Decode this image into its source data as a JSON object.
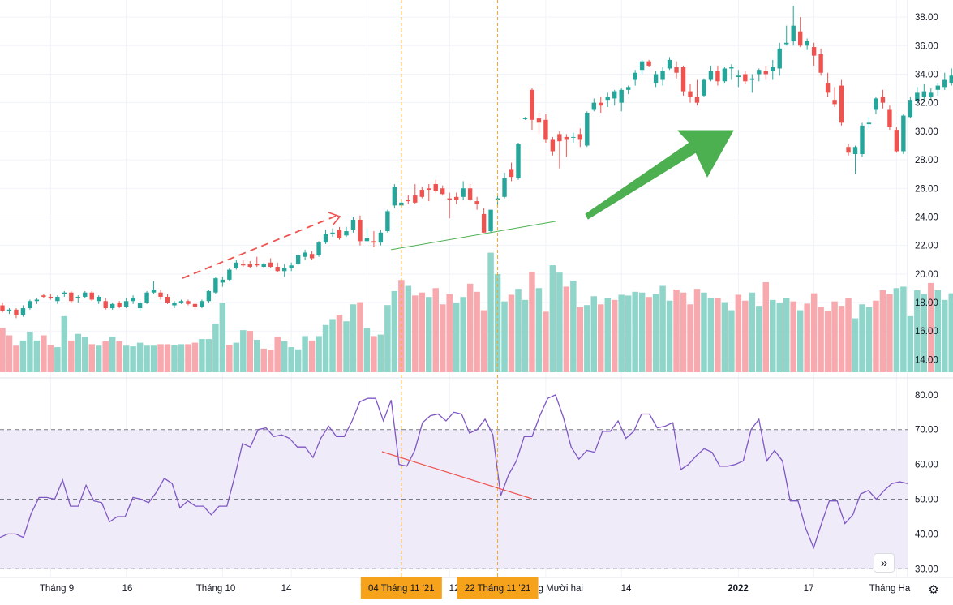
{
  "colors": {
    "up": "#26a69a",
    "down": "#ef5350",
    "vol_up": "#8fd5c9",
    "vol_down": "#f7a9ae",
    "rsi_line": "#7e57c2",
    "rsi_band": "#efebf9",
    "crosshair": "#f5a623",
    "label_bg": "#f7a21b",
    "trend_arrow": "#4caf50"
  },
  "scroll_icon": "double-chevron-right-icon",
  "settings_icon": "gear-icon",
  "scroll_glyph": "»",
  "settings_glyph": "⚙",
  "chart_data": [
    {
      "type": "candlestick",
      "title": "",
      "ylim": [
        13.0,
        39.2
      ],
      "y_ticks": [
        "38.00",
        "36.00",
        "34.00",
        "32.00",
        "30.00",
        "28.00",
        "26.00",
        "24.00",
        "22.00",
        "20.00",
        "18.00",
        "16.00",
        "14.00"
      ],
      "x_ticks": [
        "Tháng 9",
        "16",
        "Tháng 10",
        "14",
        "T",
        "12",
        "ng Mười hai",
        "14",
        "2022",
        "17",
        "Tháng Ha"
      ],
      "crosshair_labels": [
        "04 Tháng 11 '21",
        "22 Tháng 11 '21"
      ],
      "candles": [
        [
          17.8,
          18.0,
          17.3,
          17.4
        ],
        [
          17.4,
          17.6,
          17.2,
          17.5
        ],
        [
          17.5,
          17.6,
          16.9,
          17.1
        ],
        [
          17.1,
          17.8,
          17.0,
          17.6
        ],
        [
          17.6,
          18.2,
          17.5,
          18.1
        ],
        [
          18.1,
          18.3,
          17.9,
          18.2
        ],
        [
          18.5,
          18.6,
          18.3,
          18.4
        ],
        [
          18.4,
          18.6,
          18.2,
          18.3
        ],
        [
          18.1,
          18.5,
          17.9,
          18.4
        ],
        [
          18.6,
          18.8,
          18.4,
          18.7
        ],
        [
          18.7,
          18.8,
          18.0,
          18.1
        ],
        [
          18.3,
          18.5,
          18.0,
          18.4
        ],
        [
          18.4,
          18.8,
          18.3,
          18.7
        ],
        [
          18.7,
          18.8,
          18.1,
          18.2
        ],
        [
          18.1,
          18.5,
          17.9,
          18.4
        ],
        [
          18.1,
          18.3,
          17.5,
          17.6
        ],
        [
          17.6,
          18.0,
          17.5,
          17.9
        ],
        [
          18.0,
          18.1,
          17.6,
          17.7
        ],
        [
          17.7,
          18.3,
          17.6,
          18.1
        ],
        [
          18.1,
          18.5,
          17.9,
          18.3
        ],
        [
          17.6,
          18.1,
          17.4,
          18.0
        ],
        [
          18.0,
          18.8,
          17.9,
          18.7
        ],
        [
          18.7,
          19.5,
          18.6,
          18.9
        ],
        [
          18.7,
          18.9,
          18.2,
          18.4
        ],
        [
          18.4,
          18.6,
          17.9,
          18.0
        ],
        [
          17.8,
          18.1,
          17.6,
          18.0
        ],
        [
          18.0,
          18.2,
          17.9,
          18.1
        ],
        [
          18.1,
          18.2,
          17.8,
          17.9
        ],
        [
          17.9,
          18.0,
          17.5,
          17.7
        ],
        [
          17.7,
          18.2,
          17.6,
          18.1
        ],
        [
          18.1,
          18.9,
          18.0,
          18.8
        ],
        [
          18.7,
          19.8,
          18.6,
          19.7
        ],
        [
          19.4,
          19.8,
          19.1,
          19.6
        ],
        [
          19.6,
          20.4,
          19.5,
          20.3
        ],
        [
          20.4,
          21.0,
          20.3,
          20.8
        ],
        [
          20.7,
          21.0,
          20.5,
          20.6
        ],
        [
          20.7,
          20.9,
          20.4,
          20.5
        ],
        [
          20.7,
          21.2,
          20.5,
          20.6
        ],
        [
          20.5,
          20.8,
          20.4,
          20.7
        ],
        [
          20.8,
          21.1,
          20.4,
          20.5
        ],
        [
          20.5,
          20.8,
          20.1,
          20.2
        ],
        [
          20.2,
          20.7,
          19.8,
          20.4
        ],
        [
          20.4,
          20.8,
          20.2,
          20.6
        ],
        [
          20.7,
          21.4,
          20.6,
          21.3
        ],
        [
          21.2,
          21.7,
          21.0,
          21.5
        ],
        [
          21.4,
          21.6,
          21.0,
          21.1
        ],
        [
          21.3,
          22.3,
          21.2,
          22.2
        ],
        [
          22.2,
          23.1,
          22.1,
          22.8
        ],
        [
          22.8,
          23.2,
          22.6,
          22.9
        ],
        [
          23.1,
          23.3,
          22.4,
          22.5
        ],
        [
          22.7,
          23.3,
          22.6,
          23.0
        ],
        [
          23.1,
          24.0,
          22.9,
          23.8
        ],
        [
          23.8,
          24.1,
          22.0,
          22.3
        ],
        [
          22.3,
          23.2,
          22.2,
          22.5
        ],
        [
          22.3,
          23.0,
          21.9,
          22.2
        ],
        [
          22.2,
          23.1,
          22.0,
          22.9
        ],
        [
          23.0,
          24.5,
          22.9,
          24.4
        ],
        [
          24.8,
          26.3,
          24.6,
          26.1
        ],
        [
          24.8,
          25.2,
          24.6,
          25.0
        ],
        [
          25.2,
          25.5,
          24.9,
          25.1
        ],
        [
          25.5,
          26.3,
          24.9,
          25.0
        ],
        [
          25.9,
          26.1,
          25.3,
          25.4
        ],
        [
          26.0,
          26.3,
          25.1,
          25.9
        ],
        [
          26.3,
          26.6,
          25.7,
          25.8
        ],
        [
          26.0,
          26.2,
          25.5,
          25.6
        ],
        [
          25.3,
          25.7,
          23.9,
          25.2
        ],
        [
          25.4,
          25.7,
          24.9,
          25.2
        ],
        [
          25.4,
          26.5,
          25.2,
          26.0
        ],
        [
          26.0,
          26.3,
          25.1,
          25.2
        ],
        [
          25.1,
          25.4,
          24.5,
          24.9
        ],
        [
          24.2,
          24.6,
          22.9,
          22.9
        ],
        [
          23.0,
          24.5,
          22.9,
          24.5
        ],
        [
          25.2,
          25.5,
          24.8,
          25.3
        ],
        [
          25.4,
          27.1,
          25.3,
          26.7
        ],
        [
          27.3,
          27.8,
          26.5,
          26.8
        ],
        [
          26.7,
          29.2,
          26.6,
          29.1
        ],
        [
          30.9,
          31.0,
          30.8,
          30.9
        ],
        [
          32.9,
          33.0,
          30.1,
          30.8
        ],
        [
          30.9,
          31.3,
          29.8,
          30.6
        ],
        [
          30.8,
          31.2,
          29.2,
          29.4
        ],
        [
          29.4,
          29.6,
          28.3,
          28.6
        ],
        [
          29.8,
          30.0,
          27.4,
          29.3
        ],
        [
          29.6,
          29.8,
          28.2,
          29.4
        ],
        [
          29.6,
          29.9,
          29.2,
          29.6
        ],
        [
          29.8,
          30.2,
          28.9,
          29.4
        ],
        [
          29.0,
          31.4,
          28.9,
          31.3
        ],
        [
          31.5,
          32.3,
          31.4,
          32.0
        ],
        [
          32.0,
          32.4,
          31.3,
          31.8
        ],
        [
          32.2,
          32.7,
          31.7,
          32.4
        ],
        [
          32.3,
          32.9,
          31.8,
          32.8
        ],
        [
          32.0,
          33.0,
          31.4,
          32.9
        ],
        [
          32.9,
          33.2,
          32.6,
          33.1
        ],
        [
          33.6,
          34.3,
          33.2,
          34.1
        ],
        [
          34.3,
          35.0,
          34.0,
          34.9
        ],
        [
          34.9,
          35.0,
          34.5,
          34.6
        ],
        [
          33.4,
          34.2,
          33.1,
          34.0
        ],
        [
          33.6,
          34.5,
          33.2,
          34.2
        ],
        [
          34.4,
          35.2,
          34.3,
          35.0
        ],
        [
          34.5,
          34.9,
          33.7,
          34.1
        ],
        [
          34.5,
          34.6,
          32.5,
          32.8
        ],
        [
          32.8,
          33.3,
          32.0,
          32.4
        ],
        [
          32.4,
          33.6,
          31.8,
          32.0
        ],
        [
          32.5,
          33.7,
          32.4,
          33.6
        ],
        [
          33.6,
          34.6,
          33.5,
          34.2
        ],
        [
          34.2,
          34.6,
          33.2,
          33.5
        ],
        [
          33.5,
          34.5,
          33.4,
          34.4
        ],
        [
          34.4,
          34.7,
          33.6,
          34.5
        ],
        [
          33.8,
          34.3,
          33.1,
          33.9
        ],
        [
          34.0,
          34.2,
          33.3,
          33.5
        ],
        [
          33.6,
          34.0,
          32.7,
          33.7
        ],
        [
          34.0,
          34.4,
          33.5,
          34.3
        ],
        [
          34.2,
          34.6,
          33.6,
          34.0
        ],
        [
          34.2,
          35.0,
          33.6,
          34.5
        ],
        [
          34.4,
          36.2,
          33.9,
          35.8
        ],
        [
          36.1,
          37.4,
          36.0,
          36.2
        ],
        [
          36.3,
          38.8,
          36.0,
          37.4
        ],
        [
          37.0,
          38.0,
          35.9,
          36.0
        ],
        [
          36.0,
          36.5,
          35.7,
          36.3
        ],
        [
          35.9,
          36.2,
          34.6,
          35.3
        ],
        [
          35.4,
          35.8,
          33.9,
          34.1
        ],
        [
          33.4,
          34.1,
          32.4,
          32.7
        ],
        [
          32.2,
          33.1,
          31.7,
          31.9
        ],
        [
          33.2,
          33.6,
          30.4,
          30.6
        ],
        [
          28.9,
          29.1,
          28.3,
          28.5
        ],
        [
          28.4,
          29.0,
          27.0,
          28.9
        ],
        [
          28.4,
          30.6,
          28.2,
          30.4
        ],
        [
          30.5,
          31.0,
          30.2,
          30.6
        ],
        [
          31.5,
          32.4,
          31.2,
          32.3
        ],
        [
          32.4,
          32.9,
          31.6,
          32.0
        ],
        [
          31.5,
          31.8,
          30.1,
          30.3
        ],
        [
          30.1,
          30.3,
          28.5,
          28.6
        ],
        [
          28.6,
          31.2,
          28.4,
          31.1
        ],
        [
          31.0,
          32.4,
          30.9,
          32.2
        ],
        [
          32.1,
          33.1,
          31.9,
          32.7
        ],
        [
          32.4,
          33.3,
          32.1,
          32.8
        ],
        [
          32.4,
          33.0,
          32.2,
          32.7
        ],
        [
          32.9,
          33.4,
          32.5,
          33.2
        ],
        [
          33.1,
          34.1,
          32.9,
          33.6
        ],
        [
          33.4,
          34.4,
          33.2,
          33.9
        ]
      ]
    },
    {
      "type": "bar",
      "title": "Volume",
      "values": [
        0.6,
        0.5,
        0.36,
        0.43,
        0.55,
        0.43,
        0.5,
        0.37,
        0.34,
        0.76,
        0.43,
        0.52,
        0.48,
        0.38,
        0.36,
        0.42,
        0.48,
        0.42,
        0.36,
        0.35,
        0.4,
        0.36,
        0.36,
        0.38,
        0.38,
        0.37,
        0.38,
        0.38,
        0.4,
        0.45,
        0.45,
        0.66,
        0.94,
        0.37,
        0.4,
        0.57,
        0.56,
        0.44,
        0.32,
        0.3,
        0.48,
        0.42,
        0.34,
        0.31,
        0.49,
        0.43,
        0.49,
        0.64,
        0.72,
        0.78,
        0.69,
        0.92,
        0.95,
        0.6,
        0.49,
        0.51,
        0.91,
        1.1,
        1.25,
        1.17,
        1.04,
        1.08,
        1.02,
        1.14,
        0.92,
        1.06,
        0.94,
        1.02,
        1.2,
        1.09,
        0.84,
        1.62,
        1.33,
        0.96,
        1.05,
        1.13,
        0.98,
        1.36,
        1.14,
        0.82,
        1.45,
        1.35,
        1.16,
        1.24,
        0.88,
        0.91,
        1.03,
        0.92,
        1.0,
        0.98,
        1.05,
        1.04,
        1.09,
        1.08,
        1.02,
        1.06,
        1.17,
        0.97,
        1.12,
        1.08,
        0.92,
        1.13,
        1.08,
        1.01,
        1.0,
        0.95,
        0.84,
        1.05,
        0.97,
        1.08,
        0.9,
        1.22,
        0.98,
        0.94,
        1.0,
        0.96,
        0.84,
        0.93,
        1.07,
        0.88,
        0.83,
        0.96,
        0.9,
        1.0,
        0.73,
        0.92,
        0.88,
        0.97,
        1.11,
        1.06,
        1.14,
        1.16,
        0.76,
        1.11,
        1.06,
        1.21,
        1.11,
        0.98,
        1.07,
        0.84
      ],
      "up": [
        false,
        false,
        false,
        true,
        true,
        true,
        false,
        false,
        true,
        true,
        false,
        true,
        true,
        false,
        true,
        false,
        true,
        false,
        true,
        true,
        true,
        true,
        true,
        false,
        false,
        true,
        true,
        false,
        false,
        true,
        true,
        true,
        true,
        false,
        true,
        true,
        false,
        true,
        false,
        false,
        false,
        true,
        true,
        true,
        true,
        false,
        true,
        true,
        true,
        false,
        true,
        true,
        false,
        true,
        false,
        true,
        true,
        true,
        false,
        true,
        false,
        false,
        true,
        false,
        false,
        false,
        true,
        true,
        false,
        false,
        false,
        true,
        true,
        true,
        false,
        true,
        true,
        false,
        true,
        false,
        true,
        true,
        false,
        true,
        false,
        true,
        true,
        false,
        true,
        false,
        true,
        true,
        true,
        true,
        false,
        true,
        true,
        true,
        false,
        false,
        false,
        false,
        true,
        true,
        false,
        true,
        true,
        false,
        false,
        true,
        true,
        false,
        true,
        true,
        true,
        false,
        true,
        false,
        false,
        false,
        false,
        false,
        false,
        false,
        true,
        true,
        true,
        false,
        false,
        false,
        true,
        true,
        true,
        true,
        true,
        false,
        true,
        true,
        true,
        true
      ]
    },
    {
      "type": "line",
      "title": "RSI",
      "ylim": [
        27.5,
        83
      ],
      "y_ticks": [
        "80.00",
        "70.00",
        "60.00",
        "50.00",
        "40.00",
        "30.00"
      ],
      "levels": [
        70,
        50,
        30
      ],
      "values": [
        39.0,
        40.0,
        40.0,
        39.0,
        46.0,
        50.5,
        50.5,
        50.0,
        55.5,
        48.0,
        48.0,
        54.0,
        49.5,
        49.0,
        43.5,
        45.0,
        45.0,
        50.5,
        50.0,
        49.0,
        52.0,
        56.0,
        54.5,
        47.5,
        49.5,
        48.0,
        48.0,
        45.5,
        48.0,
        48.0,
        56.5,
        66.0,
        65.0,
        70.0,
        70.5,
        68.0,
        68.5,
        67.5,
        65.0,
        65.0,
        62.0,
        67.5,
        71.0,
        68.0,
        68.0,
        72.5,
        78.0,
        79.0,
        79.0,
        72.5,
        78.5,
        60.0,
        59.5,
        64.0,
        72.0,
        74.0,
        74.5,
        72.5,
        75.0,
        74.5,
        69.0,
        70.0,
        73.0,
        68.5,
        51.0,
        57.0,
        61.0,
        68.0,
        68.0,
        74.0,
        79.0,
        80.0,
        73.5,
        65.0,
        61.5,
        64.0,
        63.5,
        69.5,
        69.5,
        72.5,
        67.5,
        69.5,
        74.5,
        74.5,
        70.5,
        71.0,
        72.0,
        58.5,
        60.0,
        62.5,
        64.5,
        63.5,
        59.5,
        59.5,
        60.0,
        61.0,
        70.0,
        73.0,
        61.0,
        64.0,
        61.0,
        49.5,
        49.5,
        41.5,
        36.0,
        43.0,
        49.5,
        49.5,
        43.0,
        45.5,
        51.5,
        52.5,
        50.0,
        52.5,
        54.5,
        55.0,
        54.5
      ]
    }
  ]
}
